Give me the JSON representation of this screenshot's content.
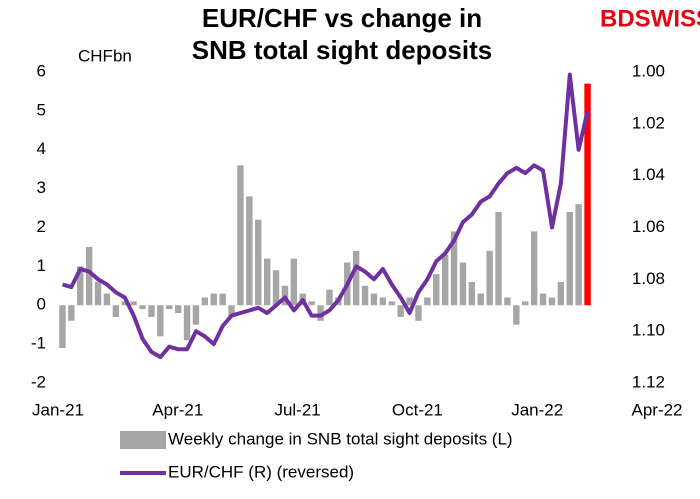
{
  "logo": "BDSWISS",
  "chart_data": {
    "type": "bar_line",
    "title": [
      "EUR/CHF vs change in",
      "SNB total sight deposits"
    ],
    "y_label": "CHFbn",
    "x_tick_labels": [
      "Jan-21",
      "Apr-21",
      "Jul-21",
      "Oct-21",
      "Jan-22",
      "Apr-22"
    ],
    "categories": [
      null,
      null,
      null,
      null,
      null,
      null,
      null,
      null,
      null,
      null,
      null,
      null,
      null,
      null,
      null,
      null,
      null,
      null,
      null,
      null,
      null,
      null,
      null,
      null,
      null,
      null,
      null,
      null,
      null,
      null,
      null,
      null,
      null,
      null,
      null,
      null,
      null,
      null,
      null,
      null,
      null,
      null,
      null,
      null,
      null,
      null,
      null,
      null,
      null,
      null,
      null,
      null,
      null,
      null,
      null,
      null,
      null,
      null,
      null,
      null
    ],
    "ylim": [
      -2,
      6
    ],
    "yticks": [
      -2,
      -1,
      0,
      1,
      2,
      3,
      4,
      5,
      6
    ],
    "y2lim": [
      1.12,
      1.0
    ],
    "y2_reversed": true,
    "y2ticks": [
      {
        "value": 1.0,
        "label": "1.00"
      },
      {
        "value": 1.02,
        "label": "1.02"
      },
      {
        "value": 1.04,
        "label": "1.04"
      },
      {
        "value": 1.06,
        "label": "1.06"
      },
      {
        "value": 1.08,
        "label": "1.08"
      },
      {
        "value": 1.1,
        "label": "1.10"
      },
      {
        "value": 1.12,
        "label": "1.12"
      }
    ],
    "series": [
      {
        "name": "Weekly change in SNB total sight deposits (L)",
        "type": "bar",
        "color": "#a6a6a6",
        "highlight_color": "#ff0000",
        "values": [
          -1.1,
          -0.4,
          1.0,
          1.5,
          0.6,
          0.3,
          -0.3,
          0.1,
          0.1,
          -0.1,
          -0.3,
          -0.8,
          -0.1,
          -0.2,
          -0.9,
          -0.5,
          0.2,
          0.3,
          0.3,
          -0.3,
          3.6,
          2.8,
          2.2,
          1.2,
          0.9,
          0.5,
          1.2,
          0.3,
          0.1,
          -0.4,
          0.4,
          0.2,
          1.1,
          1.4,
          0.5,
          0.3,
          0.2,
          0.1,
          -0.3,
          0.2,
          -0.4,
          0.2,
          0.8,
          1.3,
          1.9,
          1.1,
          0.6,
          0.3,
          1.4,
          2.4,
          0.2,
          -0.5,
          0.1,
          1.9,
          0.3,
          0.2,
          0.6,
          2.4,
          2.6,
          5.7
        ]
      },
      {
        "name": "EUR/CHF (R) (reversed)",
        "type": "line",
        "axis": "y2",
        "color": "#7030a0",
        "values": [
          1.082,
          1.083,
          1.076,
          1.077,
          1.08,
          1.082,
          1.085,
          1.087,
          1.094,
          1.103,
          1.108,
          1.11,
          1.106,
          1.107,
          1.107,
          1.1,
          1.102,
          1.105,
          1.098,
          1.094,
          1.093,
          1.092,
          1.091,
          1.093,
          1.09,
          1.087,
          1.092,
          1.088,
          1.094,
          1.094,
          1.092,
          1.088,
          1.082,
          1.075,
          1.077,
          1.08,
          1.076,
          1.082,
          1.087,
          1.093,
          1.085,
          1.08,
          1.073,
          1.07,
          1.065,
          1.058,
          1.055,
          1.05,
          1.048,
          1.043,
          1.039,
          1.037,
          1.039,
          1.036,
          1.038,
          1.06,
          1.043,
          1.001,
          1.03,
          1.015
        ]
      }
    ]
  }
}
